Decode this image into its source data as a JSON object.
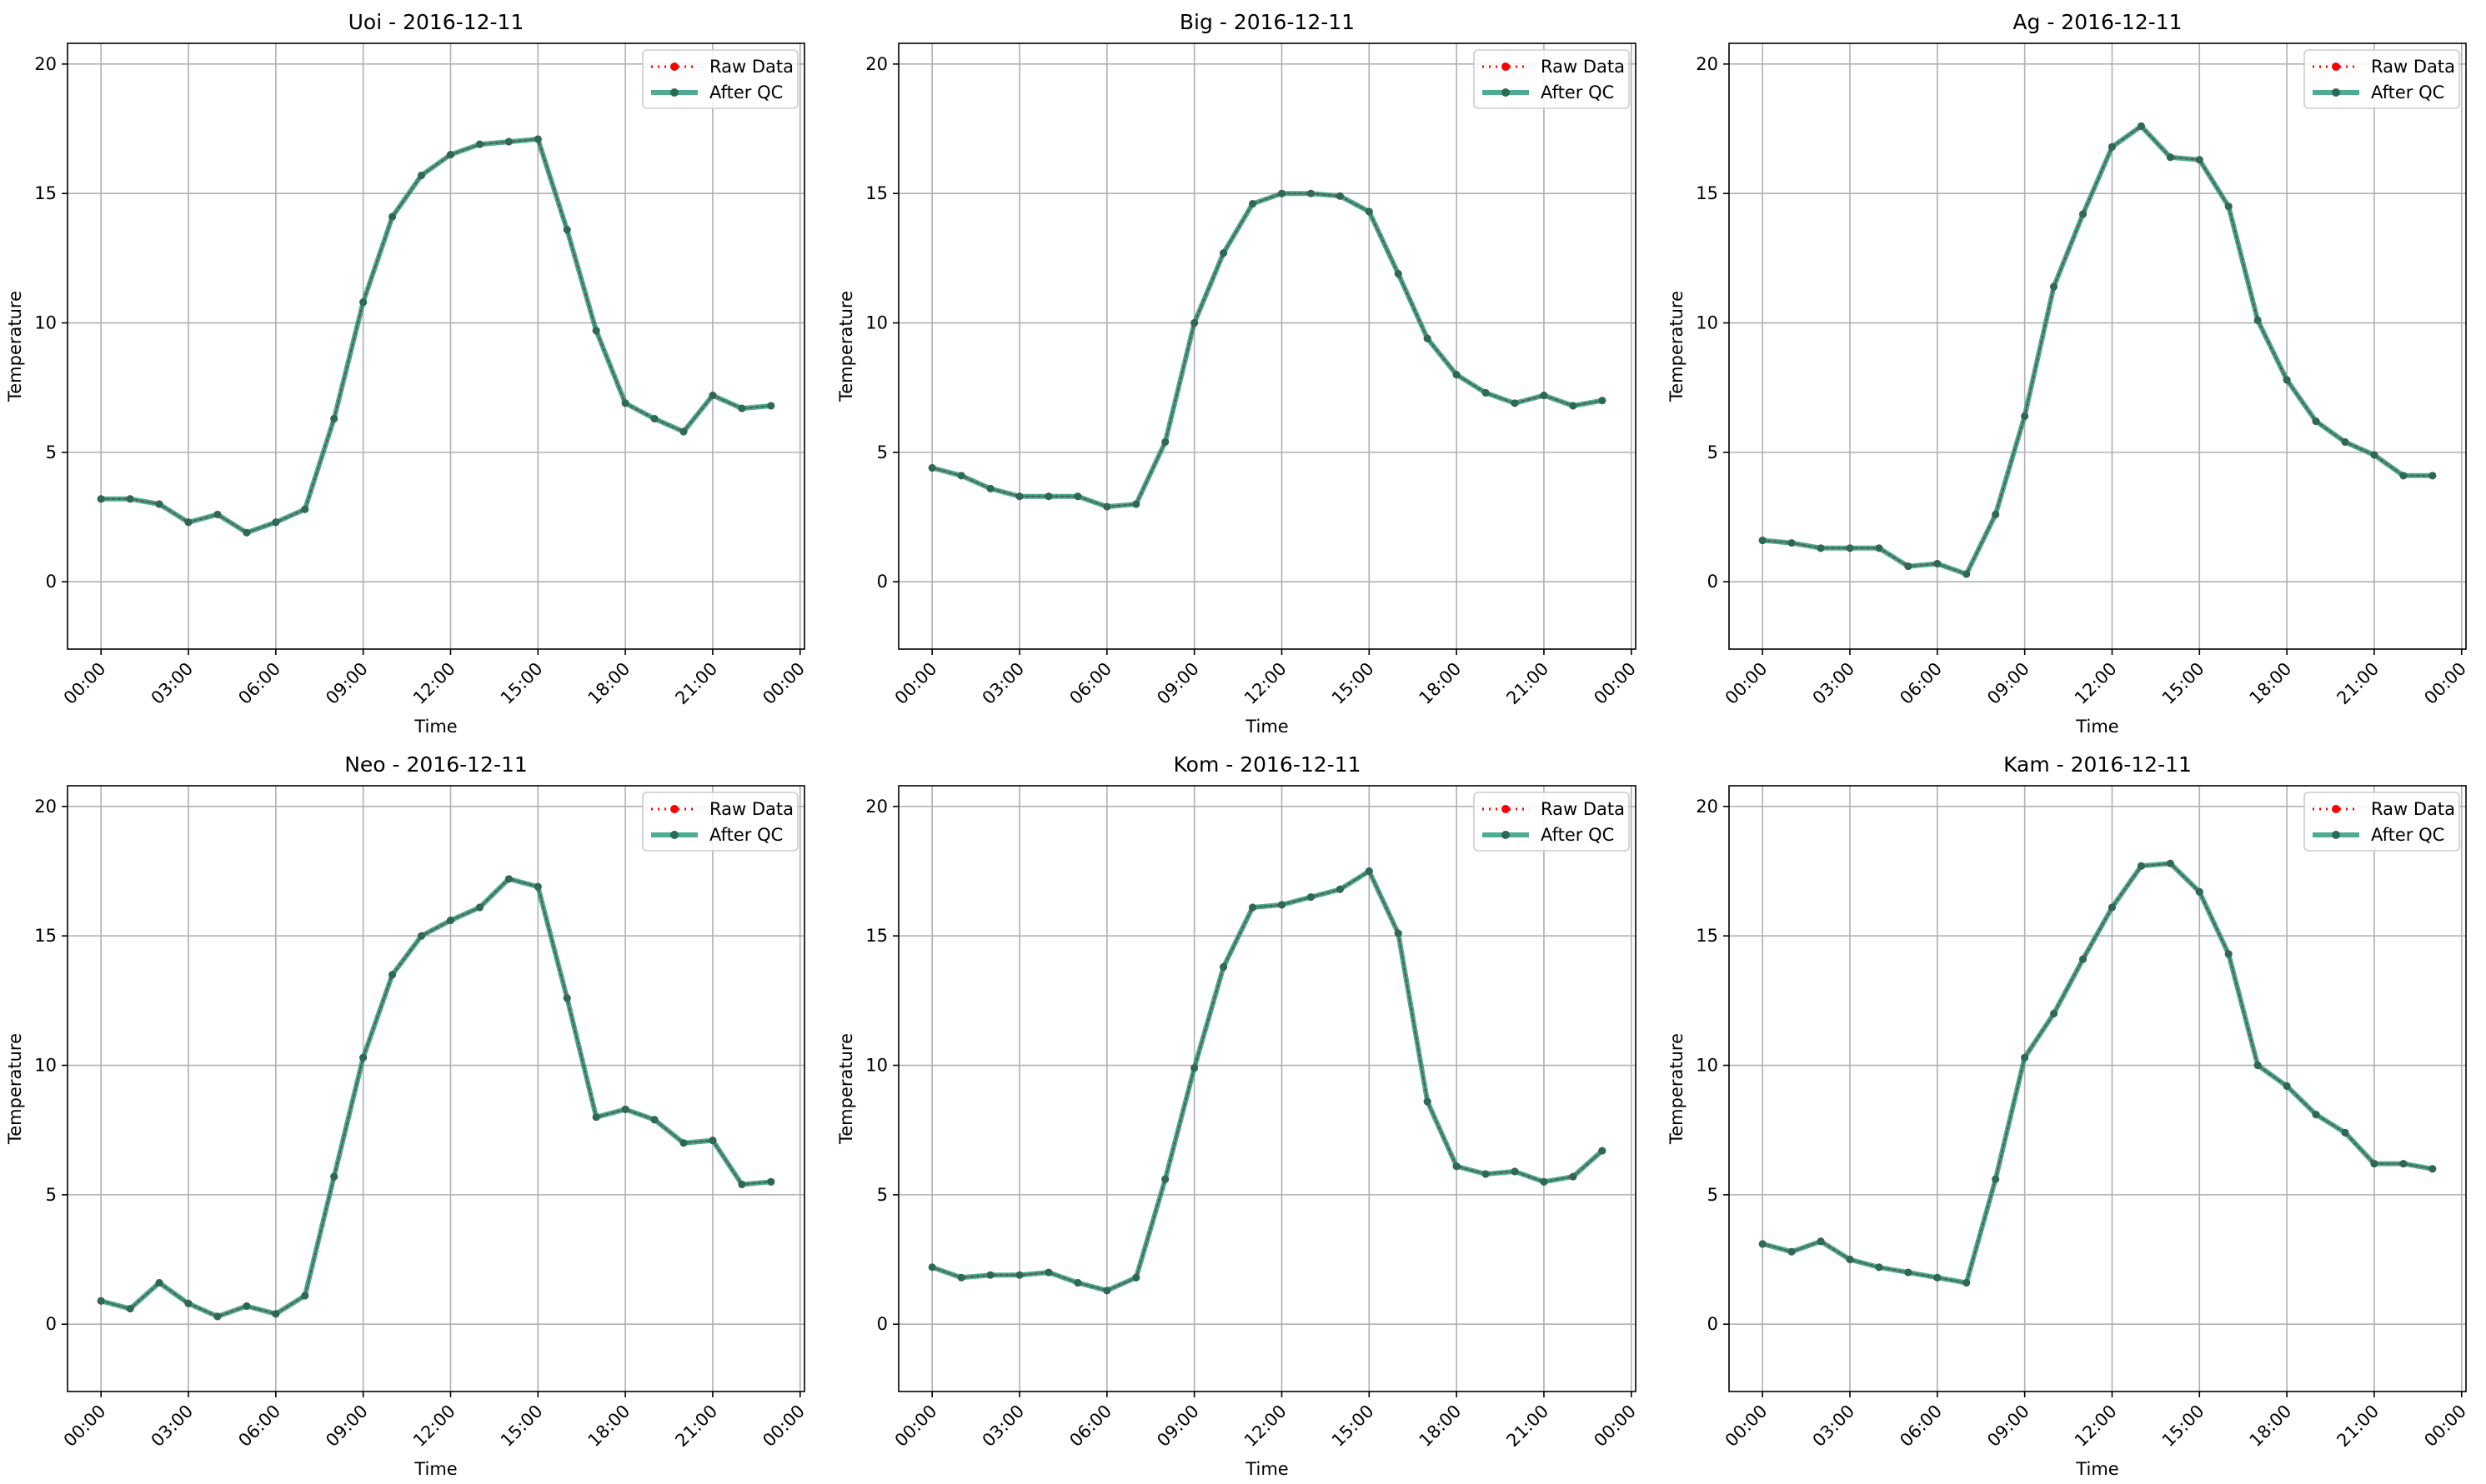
{
  "chart_data": [
    {
      "type": "line",
      "title": "Uoi - 2016-12-11",
      "xlabel": "Time",
      "ylabel": "Temperature",
      "xlim": [
        -1.15,
        24.15
      ],
      "ylim": [
        -2.6,
        20.8
      ],
      "xticks": [
        0,
        3,
        6,
        9,
        12,
        15,
        18,
        21,
        24
      ],
      "xtick_labels": [
        "00:00",
        "03:00",
        "06:00",
        "09:00",
        "12:00",
        "15:00",
        "18:00",
        "21:00",
        "00:00"
      ],
      "yticks": [
        0,
        5,
        10,
        15,
        20
      ],
      "ytick_labels": [
        "0",
        "5",
        "10",
        "15",
        "20"
      ],
      "grid": true,
      "legend": "top-right",
      "x": [
        0,
        1,
        2,
        3,
        4,
        5,
        6,
        7,
        8,
        9,
        10,
        11,
        12,
        13,
        14,
        15,
        16,
        17,
        18,
        19,
        20,
        21,
        22,
        23
      ],
      "series": [
        {
          "name": "Raw Data",
          "color": "#ff0000",
          "values": [
            3.2,
            3.2,
            3.0,
            2.3,
            2.6,
            1.9,
            2.3,
            2.8,
            6.3,
            10.8,
            14.1,
            15.7,
            16.5,
            16.9,
            17.0,
            17.1,
            13.6,
            9.7,
            6.9,
            6.3,
            5.8,
            7.2,
            6.7,
            6.8
          ]
        },
        {
          "name": "After QC",
          "color": "#2e9e7e",
          "values": [
            3.2,
            3.2,
            3.0,
            2.3,
            2.6,
            1.9,
            2.3,
            2.8,
            6.3,
            10.8,
            14.1,
            15.7,
            16.5,
            16.9,
            17.0,
            17.1,
            13.6,
            9.7,
            6.9,
            6.3,
            5.8,
            7.2,
            6.7,
            6.8
          ]
        }
      ]
    },
    {
      "type": "line",
      "title": "Big - 2016-12-11",
      "xlabel": "Time",
      "ylabel": "Temperature",
      "xlim": [
        -1.15,
        24.15
      ],
      "ylim": [
        -2.6,
        20.8
      ],
      "xticks": [
        0,
        3,
        6,
        9,
        12,
        15,
        18,
        21,
        24
      ],
      "xtick_labels": [
        "00:00",
        "03:00",
        "06:00",
        "09:00",
        "12:00",
        "15:00",
        "18:00",
        "21:00",
        "00:00"
      ],
      "yticks": [
        0,
        5,
        10,
        15,
        20
      ],
      "ytick_labels": [
        "0",
        "5",
        "10",
        "15",
        "20"
      ],
      "grid": true,
      "legend": "top-right",
      "x": [
        0,
        1,
        2,
        3,
        4,
        5,
        6,
        7,
        8,
        9,
        10,
        11,
        12,
        13,
        14,
        15,
        16,
        17,
        18,
        19,
        20,
        21,
        22,
        23
      ],
      "series": [
        {
          "name": "Raw Data",
          "color": "#ff0000",
          "values": [
            4.4,
            4.1,
            3.6,
            3.3,
            3.3,
            3.3,
            2.9,
            3.0,
            5.4,
            10.0,
            12.7,
            14.6,
            15.0,
            15.0,
            14.9,
            14.3,
            11.9,
            9.4,
            8.0,
            7.3,
            6.9,
            7.2,
            6.8,
            7.0
          ]
        },
        {
          "name": "After QC",
          "color": "#2e9e7e",
          "values": [
            4.4,
            4.1,
            3.6,
            3.3,
            3.3,
            3.3,
            2.9,
            3.0,
            5.4,
            10.0,
            12.7,
            14.6,
            15.0,
            15.0,
            14.9,
            14.3,
            11.9,
            9.4,
            8.0,
            7.3,
            6.9,
            7.2,
            6.8,
            7.0
          ]
        }
      ]
    },
    {
      "type": "line",
      "title": "Ag - 2016-12-11",
      "xlabel": "Time",
      "ylabel": "Temperature",
      "xlim": [
        -1.15,
        24.15
      ],
      "ylim": [
        -2.6,
        20.8
      ],
      "xticks": [
        0,
        3,
        6,
        9,
        12,
        15,
        18,
        21,
        24
      ],
      "xtick_labels": [
        "00:00",
        "03:00",
        "06:00",
        "09:00",
        "12:00",
        "15:00",
        "18:00",
        "21:00",
        "00:00"
      ],
      "yticks": [
        0,
        5,
        10,
        15,
        20
      ],
      "ytick_labels": [
        "0",
        "5",
        "10",
        "15",
        "20"
      ],
      "grid": true,
      "legend": "top-right",
      "x": [
        0,
        1,
        2,
        3,
        4,
        5,
        6,
        7,
        8,
        9,
        10,
        11,
        12,
        13,
        14,
        15,
        16,
        17,
        18,
        19,
        20,
        21,
        22,
        23
      ],
      "series": [
        {
          "name": "Raw Data",
          "color": "#ff0000",
          "values": [
            1.6,
            1.5,
            1.3,
            1.3,
            1.3,
            0.6,
            0.7,
            0.3,
            2.6,
            6.4,
            11.4,
            14.2,
            16.8,
            17.6,
            16.4,
            16.3,
            14.5,
            10.1,
            7.8,
            6.2,
            5.4,
            4.9,
            4.1,
            4.1
          ]
        },
        {
          "name": "After QC",
          "color": "#2e9e7e",
          "values": [
            1.6,
            1.5,
            1.3,
            1.3,
            1.3,
            0.6,
            0.7,
            0.3,
            2.6,
            6.4,
            11.4,
            14.2,
            16.8,
            17.6,
            16.4,
            16.3,
            14.5,
            10.1,
            7.8,
            6.2,
            5.4,
            4.9,
            4.1,
            4.1
          ]
        }
      ]
    },
    {
      "type": "line",
      "title": "Neo - 2016-12-11",
      "xlabel": "Time",
      "ylabel": "Temperature",
      "xlim": [
        -1.15,
        24.15
      ],
      "ylim": [
        -2.6,
        20.8
      ],
      "xticks": [
        0,
        3,
        6,
        9,
        12,
        15,
        18,
        21,
        24
      ],
      "xtick_labels": [
        "00:00",
        "03:00",
        "06:00",
        "09:00",
        "12:00",
        "15:00",
        "18:00",
        "21:00",
        "00:00"
      ],
      "yticks": [
        0,
        5,
        10,
        15,
        20
      ],
      "ytick_labels": [
        "0",
        "5",
        "10",
        "15",
        "20"
      ],
      "grid": true,
      "legend": "top-right",
      "x": [
        0,
        1,
        2,
        3,
        4,
        5,
        6,
        7,
        8,
        9,
        10,
        11,
        12,
        13,
        14,
        15,
        16,
        17,
        18,
        19,
        20,
        21,
        22,
        23
      ],
      "series": [
        {
          "name": "Raw Data",
          "color": "#ff0000",
          "values": [
            0.9,
            0.6,
            1.6,
            0.8,
            0.3,
            0.7,
            0.4,
            1.1,
            5.7,
            10.3,
            13.5,
            15.0,
            15.6,
            16.1,
            17.2,
            16.9,
            12.6,
            8.0,
            8.3,
            7.9,
            7.0,
            7.1,
            5.4,
            5.5
          ]
        },
        {
          "name": "After QC",
          "color": "#2e9e7e",
          "values": [
            0.9,
            0.6,
            1.6,
            0.8,
            0.3,
            0.7,
            0.4,
            1.1,
            5.7,
            10.3,
            13.5,
            15.0,
            15.6,
            16.1,
            17.2,
            16.9,
            12.6,
            8.0,
            8.3,
            7.9,
            7.0,
            7.1,
            5.4,
            5.5
          ]
        }
      ]
    },
    {
      "type": "line",
      "title": "Kom - 2016-12-11",
      "xlabel": "Time",
      "ylabel": "Temperature",
      "xlim": [
        -1.15,
        24.15
      ],
      "ylim": [
        -2.6,
        20.8
      ],
      "xticks": [
        0,
        3,
        6,
        9,
        12,
        15,
        18,
        21,
        24
      ],
      "xtick_labels": [
        "00:00",
        "03:00",
        "06:00",
        "09:00",
        "12:00",
        "15:00",
        "18:00",
        "21:00",
        "00:00"
      ],
      "yticks": [
        0,
        5,
        10,
        15,
        20
      ],
      "ytick_labels": [
        "0",
        "5",
        "10",
        "15",
        "20"
      ],
      "grid": true,
      "legend": "top-right",
      "x": [
        0,
        1,
        2,
        3,
        4,
        5,
        6,
        7,
        8,
        9,
        10,
        11,
        12,
        13,
        14,
        15,
        16,
        17,
        18,
        19,
        20,
        21,
        22,
        23
      ],
      "series": [
        {
          "name": "Raw Data",
          "color": "#ff0000",
          "values": [
            2.2,
            1.8,
            1.9,
            1.9,
            2.0,
            1.6,
            1.3,
            1.8,
            5.6,
            9.9,
            13.8,
            16.1,
            16.2,
            16.5,
            16.8,
            17.5,
            15.1,
            8.6,
            6.1,
            5.8,
            5.9,
            5.5,
            5.7,
            6.7
          ]
        },
        {
          "name": "After QC",
          "color": "#2e9e7e",
          "values": [
            2.2,
            1.8,
            1.9,
            1.9,
            2.0,
            1.6,
            1.3,
            1.8,
            5.6,
            9.9,
            13.8,
            16.1,
            16.2,
            16.5,
            16.8,
            17.5,
            15.1,
            8.6,
            6.1,
            5.8,
            5.9,
            5.5,
            5.7,
            6.7
          ]
        }
      ]
    },
    {
      "type": "line",
      "title": "Kam - 2016-12-11",
      "xlabel": "Time",
      "ylabel": "Temperature",
      "xlim": [
        -1.15,
        24.15
      ],
      "ylim": [
        -2.6,
        20.8
      ],
      "xticks": [
        0,
        3,
        6,
        9,
        12,
        15,
        18,
        21,
        24
      ],
      "xtick_labels": [
        "00:00",
        "03:00",
        "06:00",
        "09:00",
        "12:00",
        "15:00",
        "18:00",
        "21:00",
        "00:00"
      ],
      "yticks": [
        0,
        5,
        10,
        15,
        20
      ],
      "ytick_labels": [
        "0",
        "5",
        "10",
        "15",
        "20"
      ],
      "grid": true,
      "legend": "top-right",
      "x": [
        0,
        1,
        2,
        3,
        4,
        5,
        6,
        7,
        8,
        9,
        10,
        11,
        12,
        13,
        14,
        15,
        16,
        17,
        18,
        19,
        20,
        21,
        22,
        23
      ],
      "series": [
        {
          "name": "Raw Data",
          "color": "#ff0000",
          "values": [
            3.1,
            2.8,
            3.2,
            2.5,
            2.2,
            2.0,
            1.8,
            1.6,
            5.6,
            10.3,
            12.0,
            14.1,
            16.1,
            17.7,
            17.8,
            16.7,
            14.3,
            10.0,
            9.2,
            8.1,
            7.4,
            6.2,
            6.2,
            6.0
          ]
        },
        {
          "name": "After QC",
          "color": "#2e9e7e",
          "values": [
            3.1,
            2.8,
            3.2,
            2.5,
            2.2,
            2.0,
            1.8,
            1.6,
            5.6,
            10.3,
            12.0,
            14.1,
            16.1,
            17.7,
            17.8,
            16.7,
            14.3,
            10.0,
            9.2,
            8.1,
            7.4,
            6.2,
            6.2,
            6.0
          ]
        }
      ]
    }
  ]
}
